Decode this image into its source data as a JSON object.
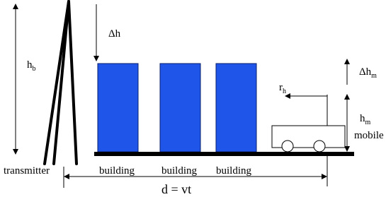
{
  "labels": {
    "delta_h": "Δh",
    "h_b": {
      "base": "h",
      "sub": "b"
    },
    "delta_h_m": {
      "base": "Δh",
      "sub": "m"
    },
    "r_h": {
      "base": "r",
      "sub": "h"
    },
    "h_m": {
      "base": "h",
      "sub": "m"
    },
    "mobile": "mobile",
    "transmitter": "transmitter",
    "buildings": [
      "building",
      "building",
      "building"
    ],
    "distance": "d = vt"
  }
}
